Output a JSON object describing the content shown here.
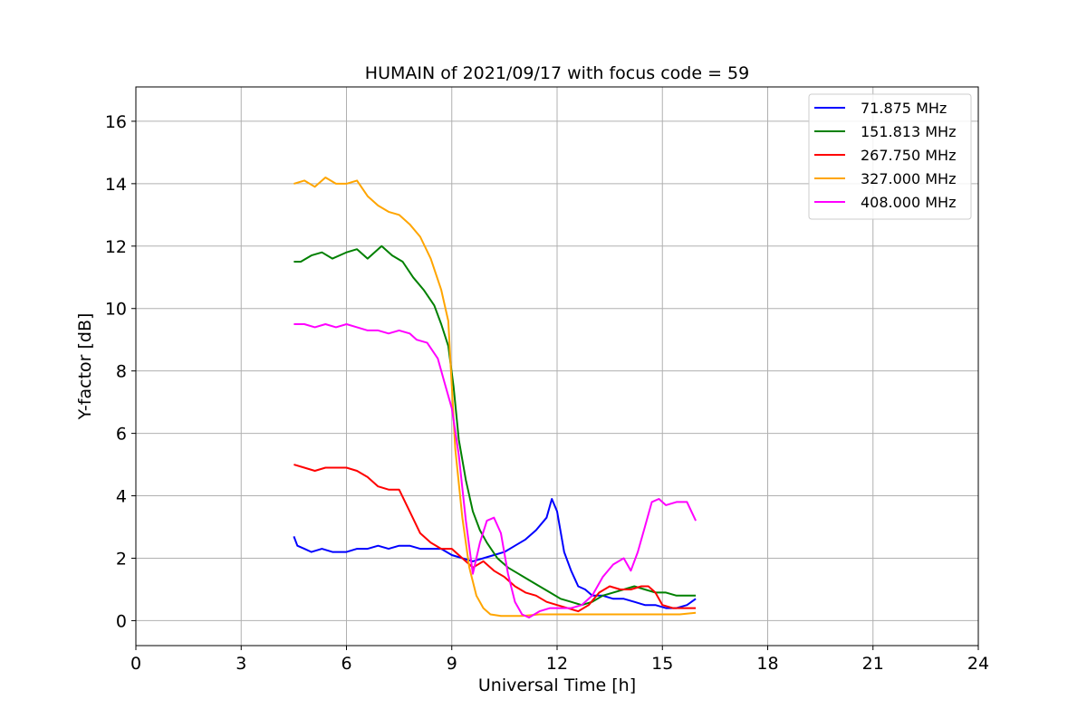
{
  "chart_data": {
    "type": "line",
    "title": "HUMAIN of 2021/09/17 with focus code = 59",
    "xlabel": "Universal Time [h]",
    "ylabel": "Y-factor [dB]",
    "xlim": [
      0,
      24
    ],
    "ylim": [
      -0.8,
      17.1
    ],
    "xticks": [
      0,
      3,
      6,
      9,
      12,
      15,
      18,
      21,
      24
    ],
    "yticks": [
      0,
      2,
      4,
      6,
      8,
      10,
      12,
      14,
      16
    ],
    "grid": true,
    "legend_position": "top-right",
    "series": [
      {
        "name": " 71.875 MHz",
        "color": "#0000ff",
        "x": [
          4.5,
          4.6,
          4.8,
          5.0,
          5.3,
          5.6,
          6.0,
          6.3,
          6.6,
          6.9,
          7.2,
          7.5,
          7.8,
          8.1,
          8.4,
          8.7,
          9.0,
          9.3,
          9.6,
          9.9,
          10.2,
          10.5,
          10.8,
          11.1,
          11.4,
          11.7,
          11.85,
          12.0,
          12.2,
          12.4,
          12.6,
          12.8,
          13.0,
          13.3,
          13.6,
          13.9,
          14.2,
          14.5,
          14.8,
          15.1,
          15.4,
          15.7,
          15.95
        ],
        "y": [
          2.7,
          2.4,
          2.3,
          2.2,
          2.3,
          2.2,
          2.2,
          2.3,
          2.3,
          2.4,
          2.3,
          2.4,
          2.4,
          2.3,
          2.3,
          2.3,
          2.1,
          2.0,
          1.9,
          2.0,
          2.1,
          2.2,
          2.4,
          2.6,
          2.9,
          3.3,
          3.9,
          3.5,
          2.2,
          1.6,
          1.1,
          1.0,
          0.8,
          0.8,
          0.7,
          0.7,
          0.6,
          0.5,
          0.5,
          0.4,
          0.4,
          0.5,
          0.7
        ]
      },
      {
        "name": "151.813 MHz",
        "color": "#008000",
        "x": [
          4.5,
          4.7,
          5.0,
          5.3,
          5.6,
          6.0,
          6.3,
          6.6,
          7.0,
          7.3,
          7.6,
          7.9,
          8.2,
          8.5,
          8.7,
          8.9,
          9.05,
          9.2,
          9.4,
          9.6,
          9.8,
          10.0,
          10.3,
          10.6,
          10.9,
          11.2,
          11.5,
          11.8,
          12.1,
          12.4,
          12.7,
          13.0,
          13.3,
          13.6,
          13.9,
          14.2,
          14.5,
          14.8,
          15.1,
          15.4,
          15.7,
          15.95
        ],
        "y": [
          11.5,
          11.5,
          11.7,
          11.8,
          11.6,
          11.8,
          11.9,
          11.6,
          12.0,
          11.7,
          11.5,
          11.0,
          10.6,
          10.1,
          9.5,
          8.8,
          7.5,
          5.8,
          4.5,
          3.5,
          2.9,
          2.5,
          2.0,
          1.7,
          1.5,
          1.3,
          1.1,
          0.9,
          0.7,
          0.6,
          0.5,
          0.6,
          0.8,
          0.9,
          1.0,
          1.1,
          1.0,
          0.9,
          0.9,
          0.8,
          0.8,
          0.8
        ]
      },
      {
        "name": "267.750 MHz",
        "color": "#ff0000",
        "x": [
          4.5,
          4.8,
          5.1,
          5.4,
          5.7,
          6.0,
          6.3,
          6.6,
          6.9,
          7.2,
          7.5,
          7.8,
          8.1,
          8.4,
          8.7,
          9.0,
          9.3,
          9.6,
          9.9,
          10.2,
          10.5,
          10.8,
          11.1,
          11.4,
          11.7,
          12.0,
          12.3,
          12.6,
          12.9,
          13.2,
          13.5,
          13.8,
          14.1,
          14.4,
          14.6,
          14.8,
          15.0,
          15.3,
          15.6,
          15.95
        ],
        "y": [
          5.0,
          4.9,
          4.8,
          4.9,
          4.9,
          4.9,
          4.8,
          4.6,
          4.3,
          4.2,
          4.2,
          3.5,
          2.8,
          2.5,
          2.3,
          2.3,
          2.0,
          1.7,
          1.9,
          1.6,
          1.4,
          1.1,
          0.9,
          0.8,
          0.6,
          0.5,
          0.4,
          0.3,
          0.5,
          0.9,
          1.1,
          1.0,
          1.0,
          1.1,
          1.1,
          0.9,
          0.5,
          0.4,
          0.4,
          0.4
        ]
      },
      {
        "name": "327.000 MHz",
        "color": "#ffa500",
        "x": [
          4.5,
          4.8,
          5.1,
          5.4,
          5.7,
          6.0,
          6.3,
          6.6,
          6.9,
          7.2,
          7.5,
          7.8,
          8.1,
          8.4,
          8.7,
          8.9,
          9.0,
          9.1,
          9.3,
          9.5,
          9.7,
          9.9,
          10.1,
          10.4,
          10.7,
          11.0,
          11.5,
          12.0,
          12.5,
          13.0,
          13.5,
          14.0,
          14.5,
          15.0,
          15.5,
          15.95
        ],
        "y": [
          14.0,
          14.1,
          13.9,
          14.2,
          14.0,
          14.0,
          14.1,
          13.6,
          13.3,
          13.1,
          13.0,
          12.7,
          12.3,
          11.6,
          10.6,
          9.6,
          7.5,
          5.5,
          3.3,
          1.7,
          0.8,
          0.4,
          0.2,
          0.15,
          0.15,
          0.15,
          0.2,
          0.2,
          0.2,
          0.2,
          0.2,
          0.2,
          0.2,
          0.2,
          0.2,
          0.25
        ]
      },
      {
        "name": "408.000 MHz",
        "color": "#ff00ff",
        "x": [
          4.5,
          4.8,
          5.1,
          5.4,
          5.7,
          6.0,
          6.3,
          6.6,
          6.9,
          7.2,
          7.5,
          7.8,
          8.0,
          8.3,
          8.6,
          8.8,
          9.0,
          9.2,
          9.4,
          9.6,
          9.8,
          10.0,
          10.2,
          10.4,
          10.6,
          10.8,
          11.0,
          11.2,
          11.5,
          11.8,
          12.1,
          12.4,
          12.7,
          13.0,
          13.3,
          13.6,
          13.9,
          14.1,
          14.3,
          14.5,
          14.7,
          14.9,
          15.1,
          15.4,
          15.7,
          15.95
        ],
        "y": [
          9.5,
          9.5,
          9.4,
          9.5,
          9.4,
          9.5,
          9.4,
          9.3,
          9.3,
          9.2,
          9.3,
          9.2,
          9.0,
          8.9,
          8.4,
          7.6,
          6.8,
          5.3,
          3.2,
          1.5,
          2.5,
          3.2,
          3.3,
          2.8,
          1.5,
          0.6,
          0.2,
          0.1,
          0.3,
          0.4,
          0.4,
          0.4,
          0.5,
          0.8,
          1.4,
          1.8,
          2.0,
          1.6,
          2.2,
          3.0,
          3.8,
          3.9,
          3.7,
          3.8,
          3.8,
          3.2
        ]
      }
    ]
  }
}
